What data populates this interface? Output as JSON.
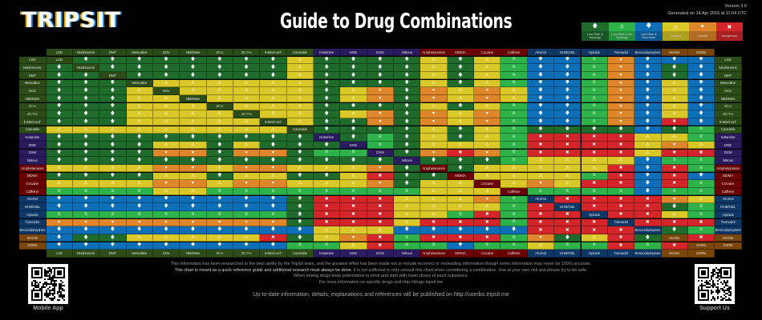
{
  "header": {
    "logo": "TRIPSIT",
    "title": "Guide to Drug Combinations",
    "version": "Version 3.0",
    "generated": "Generated on 14 Apr 2016 at 11:54 UTC"
  },
  "legend": [
    {
      "code": "S",
      "label": "Low Risk & Synergy",
      "icon": "arrow-up-icon",
      "glyph": "🡅",
      "color": "#1e6b2c"
    },
    {
      "code": "N",
      "label": "Low Risk & No Synergy",
      "icon": "no-synergy-icon",
      "glyph": "⦸",
      "color": "#2db34a"
    },
    {
      "code": "D",
      "label": "Low Risk & Decrease",
      "icon": "arrow-down-icon",
      "glyph": "🡇",
      "color": "#0d6fb8"
    },
    {
      "code": "C",
      "label": "Caution",
      "icon": "warning-icon",
      "glyph": "⚠",
      "color": "#d9c827"
    },
    {
      "code": "U",
      "label": "Unsafe",
      "icon": "unsafe-heart-icon",
      "glyph": "♥",
      "color": "#e0862a"
    },
    {
      "code": "X",
      "label": "Dangerous",
      "icon": "x-icon",
      "glyph": "✖",
      "color": "#d4252a"
    }
  ],
  "group_colors": {
    "psychedelic": "#2b4c16",
    "dissociative": "#2a1a5e",
    "stimulant": "#6b0000",
    "depressant": "#0c3766",
    "serotonergic": "#7a4508"
  },
  "drugs": [
    {
      "name": "LSD",
      "group": "psychedelic"
    },
    {
      "name": "Mushrooms",
      "group": "psychedelic"
    },
    {
      "name": "DMT",
      "group": "psychedelic"
    },
    {
      "name": "Mescaline",
      "group": "psychedelic"
    },
    {
      "name": "DOx",
      "group": "psychedelic"
    },
    {
      "name": "NBOMes",
      "group": "psychedelic"
    },
    {
      "name": "2C-x",
      "group": "psychedelic"
    },
    {
      "name": "2C-T-x",
      "group": "psychedelic"
    },
    {
      "name": "5-MeO-xxT",
      "group": "psychedelic"
    },
    {
      "name": "Cannabis",
      "group": "psychedelic"
    },
    {
      "name": "Ketamine",
      "group": "dissociative"
    },
    {
      "name": "MXE",
      "group": "dissociative"
    },
    {
      "name": "DXM",
      "group": "dissociative"
    },
    {
      "name": "Nitrous",
      "group": "dissociative"
    },
    {
      "name": "Amphetamines",
      "group": "stimulant"
    },
    {
      "name": "MDMA",
      "group": "stimulant"
    },
    {
      "name": "Cocaine",
      "group": "stimulant"
    },
    {
      "name": "Caffeine",
      "group": "stimulant"
    },
    {
      "name": "Alcohol",
      "group": "depressant"
    },
    {
      "name": "GHB/GBL",
      "group": "depressant"
    },
    {
      "name": "Opioids",
      "group": "depressant"
    },
    {
      "name": "Tramadol",
      "group": "depressant"
    },
    {
      "name": "Benzodiazepines",
      "group": "depressant"
    },
    {
      "name": "MAOIs",
      "group": "serotonergic"
    },
    {
      "name": "SSRIs",
      "group": "serotonergic"
    }
  ],
  "matrix": [
    "-SSSSSSSSCSSSSCSCNDDNUDDD",
    "S-SSSSSSSCSSSSCSCNDDNUDSD",
    "SS-SSSSSSCSSSSCSCNDDNUDSD",
    "SSS-CCCCCCSSSSCSCNDDNUDCD",
    "SSSC-CCCCCSCUSUCUCDDNUDCD",
    "SSSCC-CCCCSCUSUCUCDDNUDCD",
    "SSSCCC-CCCSSSSCSCNDDNUDCD",
    "SSSCCCC-CCSCUSUCUNDDNUDCD",
    "SSSCCCCC-CSSUSUCUNDDNUDXD",
    "CCCCCCCCC-SSSSCSCNSSSSDSN",
    "SSSSSSSSSS-SNSCSCNXXXXCCN",
    "SSSSCCSCSSS-NSCCCNXXXXCUC",
    "SSSSUUSUUSNN-SUXUNXXXXCXX",
    "SSSSSSSSSSSSS-SSSNCCCCDNN",
    "CCCCUUCUUCCCUS-SCCCCCXDXN",
    "SSSSCCSCCSSCXSS-CCCCNXDXD",
    "CCCCUUCUUCCCUSCC-CUCXXDXN",
    "NNNNCCNNNNNNNNCCC-NNNNDNN",
    "DDDDDDDDDSXXXCCCUN-XXXXUC",
    "DDDDDDDDDSXXXCCCCNX-XXXSN",
    "NNNNNNNNNSXXXCCNXNXX-XXCN",
    "UUUUUUUUUSXXXCXXXNXXX-XXX",
    "DDDDDDDDDDCCCDDDDDXXXX-SN",
    "DSSCCCCCXSCUXNXXXNUSCXS-X",
    "DDDDDDDDDNNCXNNDNNCNNXNX-"
  ],
  "footer": {
    "line1": "This information has been researched to the best ability by the TripSit team, and the greatest effort has been made not to include incorrect or misleading information though some information may never be 100% accurate.",
    "line2_bold": "This chart is meant as a quick reference guide and additional research must always be done.",
    "line2_rest": " It is not sufficient to only consult this chart when considering a combination. Use at your own risk and please try to be safe.",
    "line3": "When mixing drugs keep potentiation in mind and start with lower doses of each substance.",
    "line4": "For more information on specific drugs visit http://drugs.tripsit.me",
    "line5": "Up-to-date information, details, explanations and references will be published on http://combo.tripsit.me",
    "qr_left_label": "Mobile App",
    "qr_right_label": "Support Us"
  }
}
